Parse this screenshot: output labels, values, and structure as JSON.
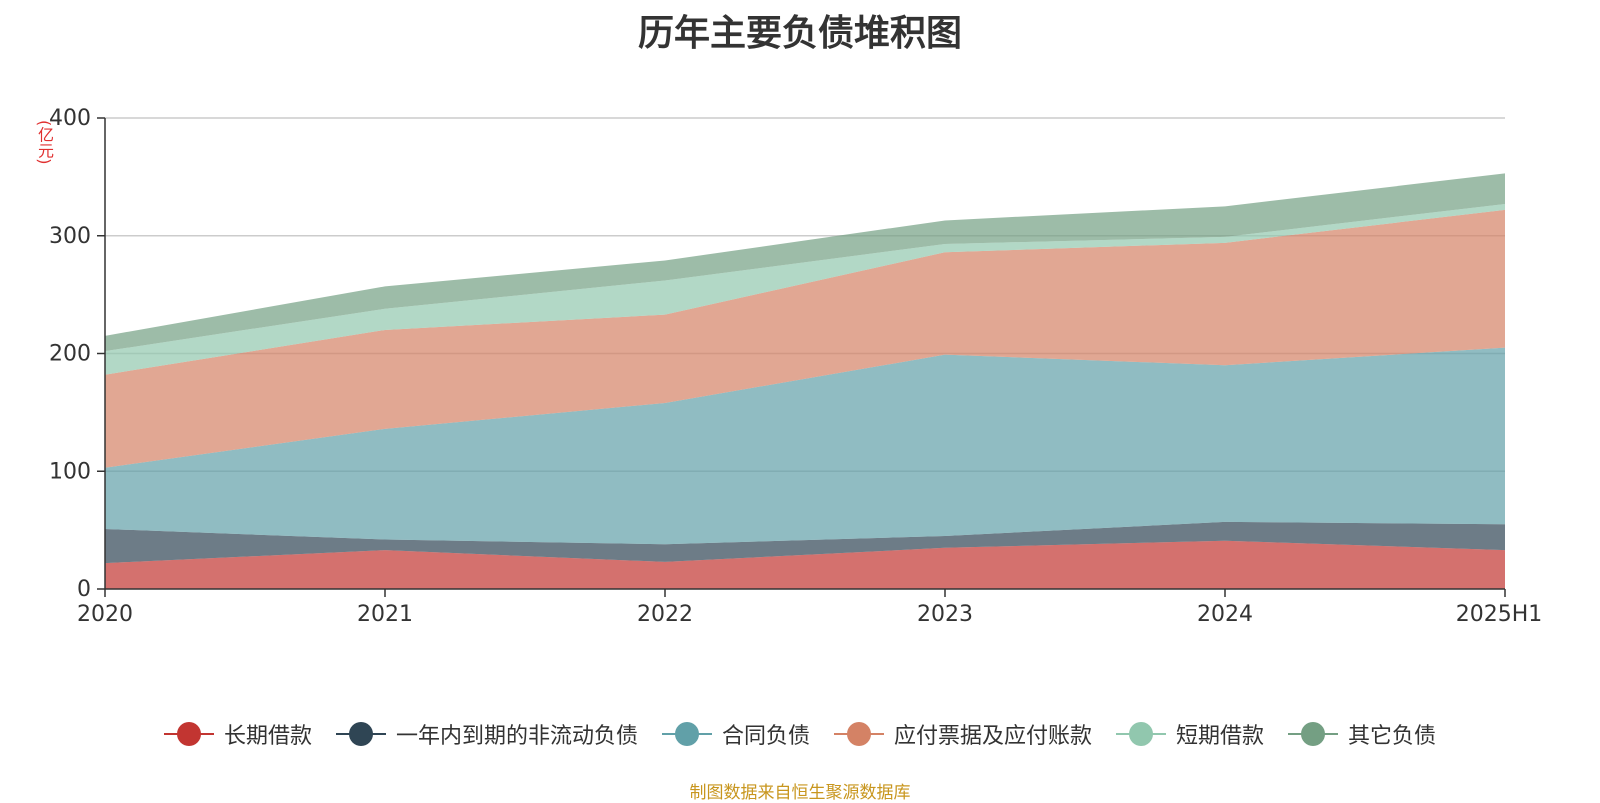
{
  "chart_data": {
    "type": "area",
    "stacked": true,
    "title": "历年主要负债堆积图",
    "unit": "(亿元)",
    "categories": [
      "2020",
      "2021",
      "2022",
      "2023",
      "2024",
      "2025H1"
    ],
    "ylim": [
      0,
      400
    ],
    "yticks": [
      0,
      100,
      200,
      300,
      400
    ],
    "grid": true,
    "legend_position": "bottom",
    "series": [
      {
        "name": "长期借款",
        "color": "#c23531",
        "values": [
          22,
          33,
          23,
          35,
          41,
          33
        ]
      },
      {
        "name": "一年内到期的非流动负债",
        "color": "#2f4554",
        "values": [
          29,
          9,
          15,
          10,
          16,
          22
        ]
      },
      {
        "name": "合同负债",
        "color": "#61a0a8",
        "values": [
          52,
          94,
          120,
          154,
          133,
          150
        ]
      },
      {
        "name": "应付票据及应付账款",
        "color": "#d48265",
        "values": [
          79,
          84,
          75,
          87,
          104,
          117
        ]
      },
      {
        "name": "短期借款",
        "color": "#91c7ae",
        "values": [
          20,
          18,
          29,
          7,
          5,
          5
        ]
      },
      {
        "name": "其它负债",
        "color": "#749f83",
        "values": [
          13,
          19,
          17,
          20,
          26,
          26
        ]
      }
    ]
  },
  "source_note": "制图数据来自恒生聚源数据库"
}
